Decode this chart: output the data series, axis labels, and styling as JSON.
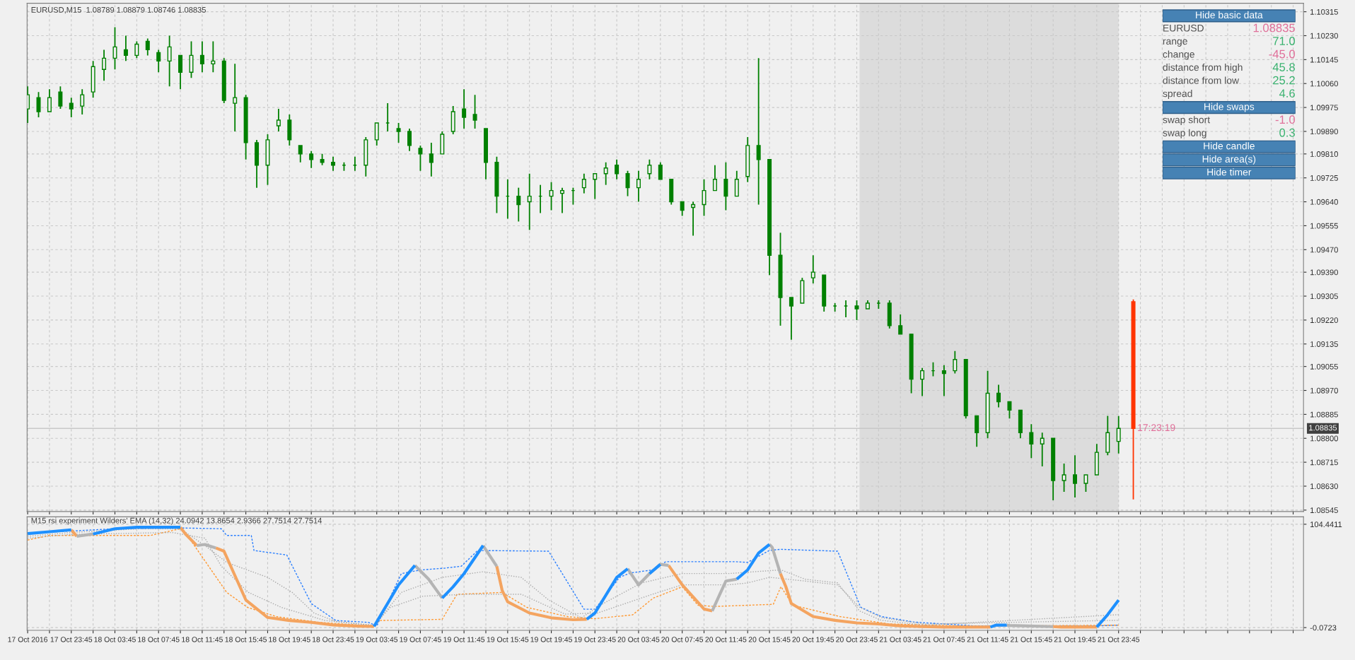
{
  "chart_data": [
    {
      "type": "candlestick",
      "title": "EURUSD,M15  1.08789 1.08879 1.08746 1.08835",
      "series": [
        {
          "color": "#008000",
          "x": [
            "2016-10-17T19:45",
            "2016-10-17T20:45",
            "2016-10-17T21:45",
            "2016-10-17T22:45",
            "2016-10-17T23:45",
            "2016-10-18T00:45",
            "2016-10-18T01:45",
            "2016-10-18T02:45",
            "2016-10-18T03:45",
            "2016-10-18T04:45",
            "2016-10-18T05:45",
            "2016-10-18T06:45",
            "2016-10-18T07:45",
            "2016-10-18T08:45",
            "2016-10-18T09:45",
            "2016-10-18T10:45",
            "2016-10-18T11:45",
            "2016-10-18T12:45",
            "2016-10-18T13:45",
            "2016-10-18T14:45",
            "2016-10-18T15:45",
            "2016-10-18T16:45",
            "2016-10-18T17:45",
            "2016-10-18T18:45",
            "2016-10-18T19:45",
            "2016-10-18T20:45",
            "2016-10-18T21:45",
            "2016-10-18T22:45",
            "2016-10-18T23:45",
            "2016-10-19T00:45",
            "2016-10-19T01:45",
            "2016-10-19T02:45",
            "2016-10-19T03:45",
            "2016-10-19T04:45",
            "2016-10-19T05:45",
            "2016-10-19T06:45",
            "2016-10-19T07:45",
            "2016-10-19T08:45",
            "2016-10-19T09:45",
            "2016-10-19T10:45",
            "2016-10-19T11:45",
            "2016-10-19T12:45",
            "2016-10-19T13:45",
            "2016-10-19T14:45",
            "2016-10-19T15:45",
            "2016-10-19T16:45",
            "2016-10-19T17:45",
            "2016-10-19T18:45",
            "2016-10-19T19:45",
            "2016-10-19T20:45",
            "2016-10-19T21:45",
            "2016-10-19T22:45",
            "2016-10-19T23:45",
            "2016-10-20T00:45",
            "2016-10-20T01:45",
            "2016-10-20T02:45",
            "2016-10-20T03:45",
            "2016-10-20T04:45",
            "2016-10-20T05:45",
            "2016-10-20T06:45",
            "2016-10-20T07:45",
            "2016-10-20T08:45",
            "2016-10-20T09:45",
            "2016-10-20T10:45",
            "2016-10-20T11:45",
            "2016-10-20T12:45",
            "2016-10-20T13:45",
            "2016-10-20T14:45",
            "2016-10-20T15:45",
            "2016-10-20T16:45",
            "2016-10-20T17:45",
            "2016-10-20T18:45",
            "2016-10-20T19:45",
            "2016-10-20T20:45",
            "2016-10-20T21:45",
            "2016-10-20T22:45",
            "2016-10-20T23:45",
            "2016-10-21T00:45",
            "2016-10-21T01:45",
            "2016-10-21T02:45",
            "2016-10-21T03:45",
            "2016-10-21T04:45",
            "2016-10-21T05:45",
            "2016-10-21T06:45",
            "2016-10-21T07:45",
            "2016-10-21T08:45",
            "2016-10-21T09:45",
            "2016-10-21T10:45",
            "2016-10-21T11:45",
            "2016-10-21T12:45",
            "2016-10-21T13:45",
            "2016-10-21T14:45",
            "2016-10-21T15:45",
            "2016-10-21T16:45",
            "2016-10-21T17:45",
            "2016-10-21T18:45",
            "2016-10-21T19:45",
            "2016-10-21T20:45",
            "2016-10-21T21:45",
            "2016-10-21T22:45",
            "2016-10-21T23:45"
          ],
          "ohlc": [
            [
              1.0997,
              1.1005,
              1.0992,
              1.1002
            ],
            [
              1.1001,
              1.1003,
              1.0994,
              1.0996
            ],
            [
              1.0996,
              1.1004,
              1.0996,
              1.1001
            ],
            [
              1.1003,
              1.1005,
              1.0997,
              1.0998
            ],
            [
              1.0999,
              1.1001,
              1.0994,
              1.0997
            ],
            [
              1.0998,
              1.1004,
              1.0995,
              1.1002
            ],
            [
              1.1003,
              1.1014,
              1.1001,
              1.1012
            ],
            [
              1.1011,
              1.1018,
              1.1007,
              1.1015
            ],
            [
              1.1015,
              1.1026,
              1.1011,
              1.1019
            ],
            [
              1.1018,
              1.1023,
              1.1014,
              1.1016
            ],
            [
              1.1016,
              1.1021,
              1.1015,
              1.102
            ],
            [
              1.1021,
              1.1022,
              1.1016,
              1.1018
            ],
            [
              1.1017,
              1.1018,
              1.101,
              1.1014
            ],
            [
              1.1014,
              1.1023,
              1.1005,
              1.1019
            ],
            [
              1.1016,
              1.1016,
              1.1004,
              1.101
            ],
            [
              1.101,
              1.1021,
              1.1008,
              1.1016
            ],
            [
              1.1016,
              1.1021,
              1.101,
              1.1013
            ],
            [
              1.1013,
              1.1021,
              1.101,
              1.1014
            ],
            [
              1.1014,
              1.1015,
              1.0999,
              1.1
            ],
            [
              1.0999,
              1.1013,
              1.0989,
              1.1001
            ],
            [
              1.1001,
              1.1002,
              1.0979,
              1.0985
            ],
            [
              1.0985,
              1.0986,
              1.0969,
              1.0977
            ],
            [
              1.0977,
              1.0988,
              1.097,
              1.0986
            ],
            [
              1.0991,
              1.0997,
              1.0989,
              1.0993
            ],
            [
              1.0993,
              1.0995,
              1.0984,
              1.0986
            ],
            [
              1.0984,
              1.0984,
              1.0978,
              1.0981
            ],
            [
              1.0981,
              1.0982,
              1.0976,
              1.0979
            ],
            [
              1.0979,
              1.0981,
              1.0977,
              1.0978
            ],
            [
              1.0978,
              1.098,
              1.0975,
              1.0977
            ],
            [
              1.0977,
              1.0978,
              1.0975,
              1.0977
            ],
            [
              1.0977,
              1.098,
              1.0975,
              1.0977
            ],
            [
              1.0977,
              1.0987,
              1.0973,
              1.0986
            ],
            [
              1.0986,
              1.0992,
              1.0984,
              1.0992
            ],
            [
              1.0992,
              1.0999,
              1.0989,
              1.0992
            ],
            [
              1.099,
              1.0992,
              1.0985,
              1.0989
            ],
            [
              1.0989,
              1.099,
              1.0982,
              1.0984
            ],
            [
              1.0983,
              1.0984,
              1.0975,
              1.0981
            ],
            [
              1.0981,
              1.0985,
              1.0973,
              1.0978
            ],
            [
              1.0981,
              1.0989,
              1.0981,
              1.0988
            ],
            [
              1.0989,
              1.0998,
              1.0988,
              1.0996
            ],
            [
              1.0997,
              1.1004,
              1.099,
              1.0994
            ],
            [
              1.0995,
              1.1002,
              1.099,
              1.0993
            ],
            [
              1.099,
              1.099,
              1.0972,
              1.0978
            ],
            [
              1.0978,
              1.098,
              1.096,
              1.0966
            ],
            [
              1.0966,
              1.0972,
              1.0958,
              1.0966
            ],
            [
              1.0966,
              1.0969,
              1.0957,
              1.0963
            ],
            [
              1.0964,
              1.0974,
              1.0954,
              1.0966
            ],
            [
              1.0966,
              1.097,
              1.096,
              1.0966
            ],
            [
              1.0966,
              1.0971,
              1.0961,
              1.0968
            ],
            [
              1.0967,
              1.0969,
              1.096,
              1.0968
            ],
            [
              1.0968,
              1.0969,
              1.0963,
              1.0968
            ],
            [
              1.0969,
              1.0974,
              1.0967,
              1.0972
            ],
            [
              1.0972,
              1.0974,
              1.0965,
              1.0974
            ],
            [
              1.0974,
              1.0978,
              1.097,
              1.0976
            ],
            [
              1.0977,
              1.0979,
              1.0972,
              1.0974
            ],
            [
              1.0974,
              1.0975,
              1.0966,
              1.0969
            ],
            [
              1.0969,
              1.0975,
              1.0964,
              1.0972
            ],
            [
              1.0974,
              1.0979,
              1.0972,
              1.0977
            ],
            [
              1.0977,
              1.0978,
              1.0972,
              1.0972
            ],
            [
              1.0972,
              1.0972,
              1.0963,
              1.0964
            ],
            [
              1.0964,
              1.0964,
              1.0959,
              1.0961
            ],
            [
              1.0962,
              1.0964,
              1.0952,
              1.0963
            ],
            [
              1.0963,
              1.0972,
              1.0959,
              1.0968
            ],
            [
              1.0968,
              1.0977,
              1.0968,
              1.0972
            ],
            [
              1.0972,
              1.0978,
              1.0961,
              1.0966
            ],
            [
              1.0966,
              1.0975,
              1.0966,
              1.0972
            ],
            [
              1.0973,
              1.0987,
              1.0971,
              1.0984
            ],
            [
              1.0984,
              1.1015,
              1.0963,
              1.0979
            ],
            [
              1.0979,
              1.0979,
              1.0938,
              1.0945
            ],
            [
              1.0945,
              1.0953,
              1.092,
              1.093
            ],
            [
              1.093,
              1.093,
              1.0915,
              1.0927
            ],
            [
              1.0928,
              1.0937,
              1.0928,
              1.0936
            ],
            [
              1.0937,
              1.0945,
              1.0935,
              1.0939
            ],
            [
              1.0938,
              1.0938,
              1.0925,
              1.0927
            ],
            [
              1.0927,
              1.0928,
              1.0925,
              1.0927
            ],
            [
              1.0927,
              1.0929,
              1.0923,
              1.0927
            ],
            [
              1.0927,
              1.0929,
              1.0922,
              1.0926
            ],
            [
              1.0926,
              1.0929,
              1.0926,
              1.0928
            ],
            [
              1.0928,
              1.0929,
              1.0926,
              1.0928
            ],
            [
              1.0928,
              1.0929,
              1.0919,
              1.092
            ],
            [
              1.092,
              1.0924,
              1.0917,
              1.0917
            ],
            [
              1.0917,
              1.0917,
              1.0896,
              1.0901
            ],
            [
              1.0901,
              1.0905,
              1.0895,
              1.0904
            ],
            [
              1.0904,
              1.0907,
              1.0902,
              1.0904
            ],
            [
              1.0904,
              1.0906,
              1.0895,
              1.0903
            ],
            [
              1.0904,
              1.0911,
              1.0903,
              1.0908
            ],
            [
              1.0908,
              1.0908,
              1.0887,
              1.0888
            ],
            [
              1.0888,
              1.0888,
              1.0877,
              1.0882
            ],
            [
              1.0882,
              1.0904,
              1.088,
              1.0896
            ],
            [
              1.0896,
              1.0899,
              1.0891,
              1.0893
            ],
            [
              1.0893,
              1.0893,
              1.0887,
              1.089
            ],
            [
              1.089,
              1.089,
              1.088,
              1.0882
            ],
            [
              1.0882,
              1.0885,
              1.0873,
              1.0878
            ],
            [
              1.0878,
              1.0882,
              1.087,
              1.088
            ],
            [
              1.088,
              1.088,
              1.0858,
              1.0865
            ],
            [
              1.0865,
              1.0871,
              1.0861,
              1.0867
            ],
            [
              1.0867,
              1.0874,
              1.0859,
              1.0864
            ],
            [
              1.0864,
              1.0867,
              1.0861,
              1.0867
            ],
            [
              1.0867,
              1.0878,
              1.0867,
              1.0875
            ],
            [
              1.0875,
              1.0888,
              1.0874,
              1.0882
            ],
            [
              1.08789,
              1.08879,
              1.08746,
              1.08835
            ]
          ]
        },
        {
          "color": "#ff3300",
          "x": [
            "2016-10-22T01:06"
          ],
          "ohlc": [
            [
              1.09285,
              1.09293,
              1.08583,
              1.08835
            ]
          ]
        }
      ],
      "xlim": [
        "2016-10-17T19:42",
        "2016-10-22T16:42"
      ],
      "ylim": [
        1.0854,
        1.10345
      ],
      "yticks": [
        1.08545,
        {
          "value": 1.0863,
          "label": "1.08630"
        },
        1.08715,
        {
          "value": 1.088,
          "label": "1.08800"
        },
        1.08885,
        {
          "value": 1.0897,
          "label": "1.08970"
        },
        1.09055,
        1.09135,
        {
          "value": 1.0922,
          "label": "1.09220"
        },
        1.09305,
        {
          "value": 1.0939,
          "label": "1.09390"
        },
        {
          "value": 1.0947,
          "label": "1.09470"
        },
        1.09555,
        {
          "value": 1.0964,
          "label": "1.09640"
        },
        1.09725,
        {
          "value": 1.0981,
          "label": "1.09810"
        },
        {
          "value": 1.0989,
          "label": "1.09890"
        },
        1.09975,
        {
          "value": 1.1006,
          "label": "1.10060"
        },
        1.10145,
        {
          "value": 1.1023,
          "label": "1.10230"
        },
        1.10315
      ],
      "tick_labels": "y",
      "grid": true,
      "ref_lines": [
        {
          "axis": "y",
          "value": 1.08835,
          "label": "1.08835",
          "color": "#c8c8c8"
        }
      ],
      "bands": [
        {
          "axis": "x",
          "from": "2016-10-21T00:00",
          "to": "2016-10-21T23:45",
          "color": "#dcdcdc"
        }
      ],
      "annotations": [
        {
          "text": "17:23:19",
          "x": "2016-10-22T01:06",
          "y": 1.08835
        }
      ]
    },
    {
      "type": "line",
      "title": "M15 rsi experiment Wilders' EMA (14,32) 24.0942 13.8654 2.9366 27.7514 27.7514",
      "x": [
        "2016-10-17T19:45",
        "2016-10-17T21:45",
        "2016-10-17T23:45",
        "2016-10-18T00:15",
        "2016-10-18T01:45",
        "2016-10-18T03:45",
        "2016-10-18T05:45",
        "2016-10-18T09:45",
        "2016-10-18T10:15",
        "2016-10-18T11:15",
        "2016-10-18T12:00",
        "2016-10-18T13:00",
        "2016-10-18T13:45",
        "2016-10-18T15:45",
        "2016-10-18T17:45",
        "2016-10-18T19:45",
        "2016-10-18T21:45",
        "2016-10-18T23:45",
        "2016-10-19T01:45",
        "2016-10-19T03:30",
        "2016-10-19T05:45",
        "2016-10-19T07:15",
        "2016-10-19T08:30",
        "2016-10-19T09:45",
        "2016-10-19T10:45",
        "2016-10-19T11:45",
        "2016-10-19T13:30",
        "2016-10-19T14:45",
        "2016-10-19T15:15",
        "2016-10-19T15:45",
        "2016-10-19T17:45",
        "2016-10-19T19:45",
        "2016-10-19T21:45",
        "2016-10-19T23:00",
        "2016-10-19T23:45",
        "2016-10-20T01:45",
        "2016-10-20T02:45",
        "2016-10-20T03:45",
        "2016-10-20T04:45",
        "2016-10-20T05:45",
        "2016-10-20T06:30",
        "2016-10-20T07:45",
        "2016-10-20T09:45",
        "2016-10-20T10:30",
        "2016-10-20T11:45",
        "2016-10-20T12:45",
        "2016-10-20T13:45",
        "2016-10-20T14:45",
        "2016-10-20T15:45",
        "2016-10-20T16:00",
        "2016-10-20T16:45",
        "2016-10-20T17:15",
        "2016-10-20T17:45",
        "2016-10-20T19:45",
        "2016-10-20T21:45",
        "2016-10-20T23:45",
        "2016-10-21T01:45",
        "2016-10-21T03:45",
        "2016-10-21T05:45",
        "2016-10-21T07:45",
        "2016-10-21T12:00",
        "2016-10-21T12:30",
        "2016-10-21T13:30",
        "2016-10-21T13:45",
        "2016-10-21T17:45",
        "2016-10-21T18:30",
        "2016-10-21T21:45",
        "2016-10-21T22:45",
        "2016-10-21T23:45"
      ],
      "series": [
        {
          "color": "#1e90ff",
          "line_style": "solid",
          "values": [
            95.0,
            96.9,
            98.8,
            null,
            94.6,
            99.9,
            101.4,
            101.4,
            null,
            null,
            null,
            null,
            null,
            null,
            null,
            null,
            null,
            null,
            null,
            1.1,
            43.1,
            62.8,
            null,
            29.8,
            41.2,
            54.5,
            82.9,
            null,
            null,
            null,
            null,
            null,
            null,
            8.3,
            14.7,
            50.7,
            59.4,
            null,
            54.5,
            63.9,
            null,
            null,
            null,
            null,
            null,
            48.9,
            58.3,
            75.3,
            84.0,
            null,
            null,
            null,
            null,
            null,
            null,
            null,
            null,
            null,
            null,
            null,
            0.5,
            2.4,
            2.4,
            null,
            null,
            null,
            0.5,
            13.0,
            27.8
          ]
        },
        {
          "color": "#f4a460",
          "line_style": "solid",
          "values": [
            null,
            null,
            98.8,
            92.3,
            null,
            null,
            null,
            101.4,
            94.2,
            82.9,
            null,
            80.5,
            77.2,
            27.9,
            10.2,
            7.1,
            5.2,
            2.6,
            1.5,
            1.1,
            null,
            null,
            null,
            null,
            null,
            null,
            null,
            62.0,
            37.4,
            26.0,
            14.7,
            9.8,
            7.9,
            8.3,
            null,
            null,
            null,
            null,
            null,
            null,
            62.8,
            43.2,
            18.7,
            16.8,
            null,
            null,
            null,
            null,
            null,
            null,
            54.6,
            41.3,
            24.3,
            11.1,
            7.3,
            4.7,
            3.6,
            1.7,
            0.9,
            0.5,
            0.5,
            null,
            null,
            null,
            0.9,
            0.5,
            0.5,
            null,
            null
          ]
        },
        {
          "color": "#b4b4b4",
          "line_style": "solid",
          "values": [
            null,
            null,
            null,
            92.3,
            94.6,
            null,
            null,
            null,
            null,
            82.9,
            84.0,
            80.5,
            null,
            null,
            null,
            null,
            null,
            null,
            null,
            null,
            null,
            62.8,
            49.0,
            29.8,
            null,
            null,
            82.9,
            62.0,
            null,
            null,
            null,
            null,
            null,
            null,
            null,
            null,
            59.4,
            43.1,
            54.5,
            63.9,
            62.8,
            null,
            null,
            16.8,
            47.0,
            48.9,
            null,
            null,
            84.0,
            81.0,
            54.6,
            null,
            null,
            null,
            null,
            null,
            null,
            null,
            null,
            null,
            null,
            null,
            2.4,
            2.1,
            0.9,
            null,
            null,
            null,
            null
          ]
        },
        {
          "color": "#2a7fff",
          "line_style": "dashed",
          "x": [
            "2016-10-17T19:45",
            "2016-10-17T23:45",
            "2016-10-18T03:45",
            "2016-10-18T09:45",
            "2016-10-18T13:30",
            "2016-10-18T14:00",
            "2016-10-18T16:15",
            "2016-10-18T16:30",
            "2016-10-18T19:30",
            "2016-10-18T21:45",
            "2016-10-19T00:00",
            "2016-10-19T03:00",
            "2016-10-19T03:45",
            "2016-10-19T06:00",
            "2016-10-19T07:45",
            "2016-10-19T10:00",
            "2016-10-19T11:30",
            "2016-10-19T13:00",
            "2016-10-19T19:30",
            "2016-10-19T22:45",
            "2016-10-19T23:45",
            "2016-10-20T02:00",
            "2016-10-20T03:00",
            "2016-10-20T05:00",
            "2016-10-20T06:15",
            "2016-10-20T07:45",
            "2016-10-20T12:36",
            "2016-10-20T13:45",
            "2016-10-20T15:45",
            "2016-10-20T16:45",
            "2016-10-20T22:00",
            "2016-10-21T00:06",
            "2016-10-21T02:00",
            "2016-10-21T05:00",
            "2016-10-21T10:30",
            "2016-10-21T21:45",
            "2016-10-21T23:45"
          ],
          "values": [
            95.4,
            97.6,
            99.9,
            100.7,
            99.9,
            93.1,
            93.1,
            77.9,
            73.4,
            24.2,
            7.1,
            5.2,
            1.5,
            54.5,
            58.2,
            60.1,
            62.0,
            77.9,
            77.2,
            18.5,
            18.5,
            50.7,
            55.2,
            58.2,
            66.6,
            66.6,
            66.6,
            65.9,
            78.0,
            79.1,
            77.2,
            20.6,
            11.1,
            5.5,
            1.7,
            1.7,
            2.4
          ]
        },
        {
          "color": "#ff9933",
          "line_style": "dashed",
          "x": [
            "2016-10-17T19:45",
            "2016-10-17T21:45",
            "2016-10-18T07:00",
            "2016-10-18T09:45",
            "2016-10-18T10:15",
            "2016-10-18T14:00",
            "2016-10-18T15:54",
            "2016-10-18T18:36",
            "2016-10-18T22:30",
            "2016-10-19T03:30",
            "2016-10-19T04:00",
            "2016-10-19T09:45",
            "2016-10-19T11:06",
            "2016-10-19T15:15",
            "2016-10-19T17:30",
            "2016-10-19T21:18",
            "2016-10-19T23:45",
            "2016-10-20T03:12",
            "2016-10-20T05:06",
            "2016-10-20T07:45",
            "2016-10-20T09:12",
            "2016-10-20T10:42",
            "2016-10-20T16:06",
            "2016-10-20T16:48",
            "2016-10-20T17:54",
            "2016-10-20T22:12",
            "2016-10-21T02:45",
            "2016-10-21T10:24",
            "2016-10-21T23:45"
          ],
          "values": [
            88.5,
            93.1,
            93.1,
            99.9,
            95.4,
            35.5,
            20.4,
            10.9,
            5.2,
            1.5,
            7.1,
            8.3,
            33.6,
            35.5,
            20.4,
            10.9,
            9.0,
            12.8,
            29.8,
            41.2,
            22.5,
            21.3,
            23.5,
            41.3,
            22.5,
            11.1,
            3.6,
            1.3,
            2.4
          ]
        },
        {
          "color": "#a9a9a9",
          "line_style": "dotted",
          "x": [
            "2016-10-17T19:45",
            "2016-10-17T23:45",
            "2016-10-18T06:00",
            "2016-10-18T09:45",
            "2016-10-18T12:00",
            "2016-10-18T14:00",
            "2016-10-18T17:45",
            "2016-10-18T20:00",
            "2016-10-18T22:00",
            "2016-10-19T00:00",
            "2016-10-19T03:30",
            "2016-10-19T06:00",
            "2016-10-19T09:45",
            "2016-10-19T13:30",
            "2016-10-19T17:00",
            "2016-10-19T19:30",
            "2016-10-19T22:30",
            "2016-10-20T00:30",
            "2016-10-20T04:00",
            "2016-10-20T07:45",
            "2016-10-20T12:00",
            "2016-10-20T16:48",
            "2016-10-20T19:00",
            "2016-10-20T22:00",
            "2016-10-21T00:00",
            "2016-10-21T02:00",
            "2016-10-21T06:00",
            "2016-10-21T23:45"
          ],
          "values": [
            92.3,
            96.1,
            99.9,
            99.9,
            82.9,
            65.8,
            50.7,
            35.5,
            14.7,
            6.0,
            2.2,
            35.5,
            50.7,
            56.4,
            50.7,
            27.9,
            9.8,
            24.2,
            45.0,
            54.6,
            54.6,
            58.3,
            48.9,
            45.1,
            16.8,
            7.3,
            2.4,
            13.0
          ]
        },
        {
          "color": "#a9a9a9",
          "line_style": "dotted",
          "x": [
            "2016-10-17T19:45",
            "2016-10-17T23:45",
            "2016-10-18T09:00",
            "2016-10-18T12:00",
            "2016-10-18T13:30",
            "2016-10-18T16:00",
            "2016-10-18T19:00",
            "2016-10-18T23:00",
            "2016-10-19T03:30",
            "2016-10-19T05:00",
            "2016-10-19T08:00",
            "2016-10-19T12:00",
            "2016-10-19T17:00",
            "2016-10-19T21:00",
            "2016-10-20T00:00",
            "2016-10-20T05:00",
            "2016-10-20T07:45",
            "2016-10-20T12:00",
            "2016-10-20T13:45",
            "2016-10-20T15:45",
            "2016-10-20T19:00",
            "2016-10-20T22:00",
            "2016-10-21T00:00",
            "2016-10-21T02:00",
            "2016-10-21T06:00",
            "2016-10-21T23:45"
          ],
          "values": [
            90.4,
            94.2,
            96.1,
            90.4,
            62.0,
            35.5,
            20.4,
            7.1,
            2.2,
            20.4,
            31.7,
            33.6,
            33.6,
            13.6,
            14.7,
            33.6,
            43.2,
            43.2,
            45.1,
            50.8,
            47.0,
            43.2,
            20.6,
            10.0,
            3.6,
            7.3
          ]
        }
      ],
      "xlim": [
        "2016-10-17T19:42",
        "2016-10-22T16:42"
      ],
      "ylim": [
        -2.8,
        112
      ],
      "xticks": [
        {
          "value": "2016-10-17T19:45",
          "label": "17 Oct 2016"
        },
        {
          "value": "2016-10-17T21:45",
          "label": null
        },
        {
          "value": "2016-10-17T23:45",
          "label": "17 Oct 23:45"
        },
        {
          "value": "2016-10-18T01:45",
          "label": null
        },
        {
          "value": "2016-10-18T03:45",
          "label": "18 Oct 03:45"
        },
        {
          "value": "2016-10-18T05:45",
          "label": null
        },
        {
          "value": "2016-10-18T07:45",
          "label": "18 Oct 07:45"
        },
        {
          "value": "2016-10-18T09:45",
          "label": null
        },
        {
          "value": "2016-10-18T11:45",
          "label": "18 Oct 11:45"
        },
        {
          "value": "2016-10-18T13:45",
          "label": null
        },
        {
          "value": "2016-10-18T15:45",
          "label": "18 Oct 15:45"
        },
        {
          "value": "2016-10-18T17:45",
          "label": null
        },
        {
          "value": "2016-10-18T19:45",
          "label": "18 Oct 19:45"
        },
        {
          "value": "2016-10-18T21:45",
          "label": null
        },
        {
          "value": "2016-10-18T23:45",
          "label": "18 Oct 23:45"
        },
        {
          "value": "2016-10-19T01:45",
          "label": null
        },
        {
          "value": "2016-10-19T03:45",
          "label": "19 Oct 03:45"
        },
        {
          "value": "2016-10-19T05:45",
          "label": null
        },
        {
          "value": "2016-10-19T07:45",
          "label": "19 Oct 07:45"
        },
        {
          "value": "2016-10-19T09:45",
          "label": null
        },
        {
          "value": "2016-10-19T11:45",
          "label": "19 Oct 11:45"
        },
        {
          "value": "2016-10-19T13:45",
          "label": null
        },
        {
          "value": "2016-10-19T15:45",
          "label": "19 Oct 15:45"
        },
        {
          "value": "2016-10-19T17:45",
          "label": null
        },
        {
          "value": "2016-10-19T19:45",
          "label": "19 Oct 19:45"
        },
        {
          "value": "2016-10-19T21:45",
          "label": null
        },
        {
          "value": "2016-10-19T23:45",
          "label": "19 Oct 23:45"
        },
        {
          "value": "2016-10-20T01:45",
          "label": null
        },
        {
          "value": "2016-10-20T03:45",
          "label": "20 Oct 03:45"
        },
        {
          "value": "2016-10-20T05:45",
          "label": null
        },
        {
          "value": "2016-10-20T07:45",
          "label": "20 Oct 07:45"
        },
        {
          "value": "2016-10-20T09:45",
          "label": null
        },
        {
          "value": "2016-10-20T11:45",
          "label": "20 Oct 11:45"
        },
        {
          "value": "2016-10-20T13:45",
          "label": null
        },
        {
          "value": "2016-10-20T15:45",
          "label": "20 Oct 15:45"
        },
        {
          "value": "2016-10-20T17:45",
          "label": null
        },
        {
          "value": "2016-10-20T19:45",
          "label": "20 Oct 19:45"
        },
        {
          "value": "2016-10-20T21:45",
          "label": null
        },
        {
          "value": "2016-10-20T23:45",
          "label": "20 Oct 23:45"
        },
        {
          "value": "2016-10-21T01:45",
          "label": null
        },
        {
          "value": "2016-10-21T03:45",
          "label": "21 Oct 03:45"
        },
        {
          "value": "2016-10-21T05:45",
          "label": null
        },
        {
          "value": "2016-10-21T07:45",
          "label": "21 Oct 07:45"
        },
        {
          "value": "2016-10-21T09:45",
          "label": null
        },
        {
          "value": "2016-10-21T11:45",
          "label": "21 Oct 11:45"
        },
        {
          "value": "2016-10-21T13:45",
          "label": null
        },
        {
          "value": "2016-10-21T15:45",
          "label": "21 Oct 15:45"
        },
        {
          "value": "2016-10-21T17:45",
          "label": null
        },
        {
          "value": "2016-10-21T19:45",
          "label": "21 Oct 19:45"
        },
        {
          "value": "2016-10-21T21:45",
          "label": null
        },
        {
          "value": "2016-10-21T23:45",
          "label": "21 Oct 23:45"
        },
        {
          "value": "2016-10-22T01:45",
          "label": null
        },
        {
          "value": "2016-10-22T03:45",
          "label": null
        },
        {
          "value": "2016-10-22T05:45",
          "label": null
        },
        {
          "value": "2016-10-22T07:45",
          "label": null
        },
        {
          "value": "2016-10-22T09:45",
          "label": null
        },
        {
          "value": "2016-10-22T11:45",
          "label": null
        },
        {
          "value": "2016-10-22T13:45",
          "label": null
        },
        {
          "value": "2016-10-22T15:45",
          "label": null
        }
      ],
      "yticks": [
        104.4411,
        -0.0723
      ],
      "grid": true
    },
    {
      "type": "other",
      "categories": [
        "Hide basic data",
        "EURUSD",
        "range",
        "change",
        "distance from high",
        "distance from low",
        "spread",
        "Hide swaps",
        "swap short",
        "swap long",
        "Hide candle",
        "Hide area(s)",
        "Hide timer"
      ],
      "value_labels": [
        null,
        "1.08835",
        "71.0",
        "-45.0",
        "45.8",
        "25.2",
        "4.6",
        null,
        "-1.0",
        "0.3",
        null,
        null,
        null
      ],
      "colors": [
        "#4682b4",
        "#e0709a",
        "#3cb371",
        "#e0709a",
        "#3cb371",
        "#3cb371",
        "#3cb371",
        "#4682b4",
        "#e0709a",
        "#3cb371",
        "#4682b4",
        "#4682b4",
        "#4682b4"
      ]
    }
  ]
}
